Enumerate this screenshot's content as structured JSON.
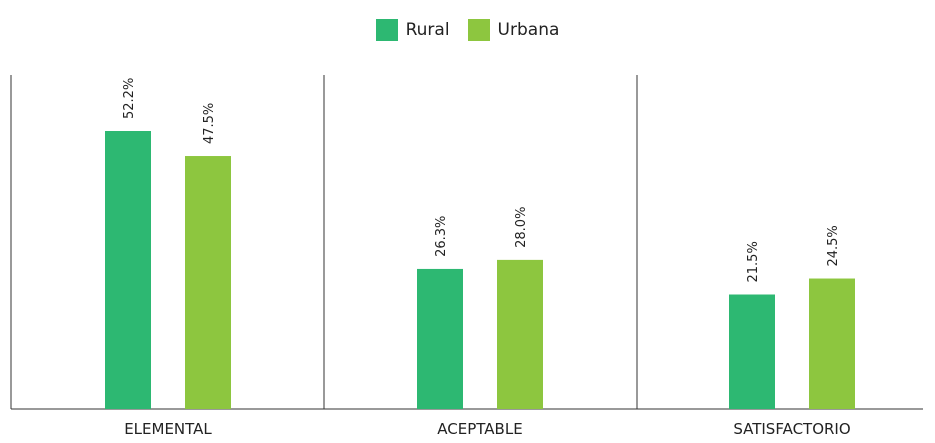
{
  "chart_data": {
    "type": "bar",
    "categories": [
      "ELEMENTAL",
      "ACEPTABLE",
      "SATISFACTORIO"
    ],
    "series": [
      {
        "name": "Rural",
        "values": [
          52.2,
          26.3,
          21.5
        ],
        "labels": [
          "52.2%",
          "26.3%",
          "21.5%"
        ],
        "color": "#2db872"
      },
      {
        "name": "Urbana",
        "values": [
          47.5,
          28.0,
          24.5
        ],
        "labels": [
          "47.5%",
          "28.0%",
          "24.5%"
        ],
        "color": "#8dc63f"
      }
    ],
    "legend_position": "top-center",
    "grid": false,
    "ylim": [
      0,
      60
    ]
  }
}
